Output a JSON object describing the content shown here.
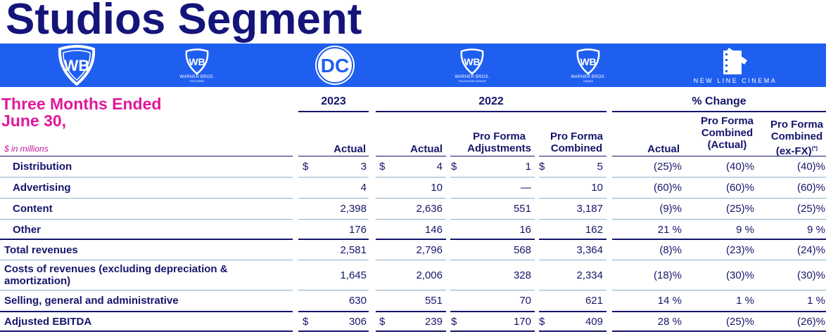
{
  "title": "Studios Segment",
  "logos": [
    {
      "icon": "wb-shield-icon",
      "caption": ""
    },
    {
      "icon": "wb-shield-icon",
      "caption": "WARNER BROS.",
      "subcaption": "PICTURES"
    },
    {
      "icon": "dc-logo-icon",
      "caption": ""
    },
    {
      "icon": "wb-shield-icon",
      "caption": "WARNER BROS.",
      "subcaption": "TELEVISION GROUP"
    },
    {
      "icon": "wb-shield-icon",
      "caption": "WARNER BROS.",
      "subcaption": "GAMES"
    },
    {
      "icon": "new-line-cinema-icon",
      "caption": "NEW LINE CINEMA"
    }
  ],
  "colors": {
    "brand_band": "#1f5ff0",
    "title": "#14147a",
    "accent": "#e0189b"
  },
  "period": {
    "line1": "Three Months Ended",
    "line2": "June 30,"
  },
  "units": "$ in millions",
  "groups": {
    "y2023": "2023",
    "y2022": "2022",
    "change": "% Change"
  },
  "columns": {
    "actual_2023": "Actual",
    "actual_2022": "Actual",
    "pfa_1": "Pro Forma",
    "pfa_2": "Adjustments",
    "pfc_1": "Pro Forma",
    "pfc_2": "Combined",
    "chg_actual": "Actual",
    "chg_pfc_1": "Pro Forma",
    "chg_pfc_2": "Combined",
    "chg_pfc_3": "(Actual)",
    "chg_fx_1": "Pro Forma",
    "chg_fx_2": "Combined",
    "chg_fx_3": "(ex-FX)",
    "chg_fx_note": "(*)"
  },
  "rows": [
    {
      "label": "Distribution",
      "v2023": "3",
      "v2022": "4",
      "pfa": "1",
      "pfc": "5",
      "chg": "(25)%",
      "chg_pfc": "(40)%",
      "chg_fx": "(40)%",
      "dollar": "$"
    },
    {
      "label": "Advertising",
      "v2023": "4",
      "v2022": "10",
      "pfa": "—",
      "pfc": "10",
      "chg": "(60)%",
      "chg_pfc": "(60)%",
      "chg_fx": "(60)%"
    },
    {
      "label": "Content",
      "v2023": "2,398",
      "v2022": "2,636",
      "pfa": "551",
      "pfc": "3,187",
      "chg": "(9)%",
      "chg_pfc": "(25)%",
      "chg_fx": "(25)%"
    },
    {
      "label": "Other",
      "v2023": "176",
      "v2022": "146",
      "pfa": "16",
      "pfc": "162",
      "chg": "21 %",
      "chg_pfc": "9 %",
      "chg_fx": "9 %"
    },
    {
      "label": "Total revenues",
      "v2023": "2,581",
      "v2022": "2,796",
      "pfa": "568",
      "pfc": "3,364",
      "chg": "(8)%",
      "chg_pfc": "(23)%",
      "chg_fx": "(24)%"
    },
    {
      "label": "Costs of revenues (excluding depreciation & amortization)",
      "v2023": "1,645",
      "v2022": "2,006",
      "pfa": "328",
      "pfc": "2,334",
      "chg": "(18)%",
      "chg_pfc": "(30)%",
      "chg_fx": "(30)%"
    },
    {
      "label": "Selling, general and administrative",
      "v2023": "630",
      "v2022": "551",
      "pfa": "70",
      "pfc": "621",
      "chg": "14 %",
      "chg_pfc": "1 %",
      "chg_fx": "1 %"
    },
    {
      "label": "Adjusted EBITDA",
      "v2023": "306",
      "v2022": "239",
      "pfa": "170",
      "pfc": "409",
      "chg": "28 %",
      "chg_pfc": "(25)%",
      "chg_fx": "(26)%",
      "dollar": "$"
    }
  ]
}
